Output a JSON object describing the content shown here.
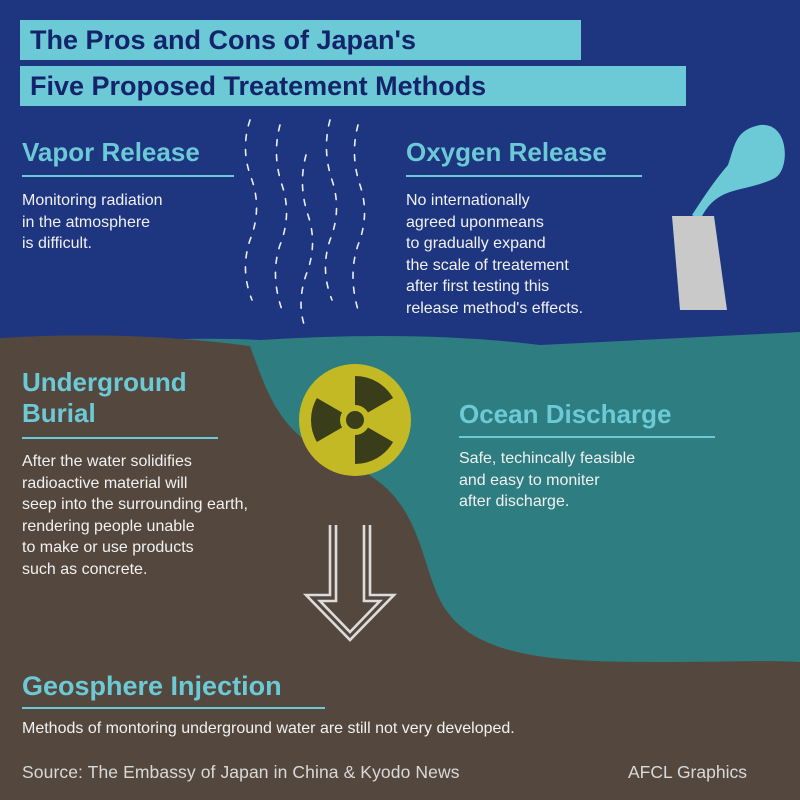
{
  "title": {
    "line1": "The Pros and Cons of Japan's",
    "line2": "Five Proposed Treatement Methods"
  },
  "methods": {
    "vapor_release": {
      "heading": "Vapor Release",
      "text": "Monitoring radiation\nin the atmosphere\nis difficult."
    },
    "oxygen_release": {
      "heading": "Oxygen Release",
      "text": "No internationally\nagreed uponmeans\nto gradually expand\nthe scale of treatement\nafter first testing this\nrelease method's effects."
    },
    "underground_burial": {
      "heading": "Underground\nBurial",
      "text": "After the water solidifies\nradioactive material will\nseep into the surrounding earth,\nrendering people unable\nto make or use products\nsuch as concrete."
    },
    "ocean_discharge": {
      "heading": "Ocean Discharge",
      "text": "Safe, techincally feasible\nand easy to moniter\nafter discharge."
    },
    "geosphere_injection": {
      "heading": "Geosphere Injection",
      "text": "Methods of montoring underground water are still not very developed."
    }
  },
  "footer": {
    "source": "Source: The Embassy of Japan in China & Kyodo News",
    "credit": "AFCL Graphics"
  },
  "icons": [
    "vapor-wisps-icon",
    "smokestack-icon",
    "radiation-icon",
    "down-arrow-icon"
  ],
  "colors": {
    "sky": "#1e3580",
    "accent": "#6cc9d6",
    "title_text": "#13246a",
    "ocean": "#2e7d80",
    "earth": "#54483e",
    "radiation": "#c3b924",
    "chimney": "#c9c9c9"
  }
}
